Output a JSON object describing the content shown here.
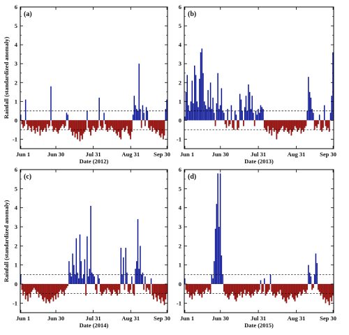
{
  "colors": {
    "positive": "#0a1496",
    "negative": "#a8120f",
    "frame": "#000000",
    "threshold": "#000000"
  },
  "chart_data": [
    {
      "type": "bar",
      "panel_label": "(a)",
      "xlabel": "Date (2012)",
      "ylabel": "Rainfall (standardized anomaly)",
      "xticks": [
        "Jun 1",
        "Jun 30",
        "Jul 31",
        "Aug 31",
        "Sep 30"
      ],
      "yticks": [
        "-1",
        "0",
        "1",
        "2",
        "3",
        "4",
        "5",
        "6"
      ],
      "ylim": [
        -1.5,
        6
      ],
      "thresholds": [
        0.5,
        -0.5
      ],
      "days": 122,
      "values": [
        0.3,
        -0.2,
        -0.4,
        -0.3,
        1.1,
        -0.2,
        -0.5,
        -0.3,
        -0.4,
        -0.6,
        -0.3,
        -0.5,
        -0.7,
        -0.4,
        -0.6,
        -0.3,
        -0.8,
        -0.5,
        -0.6,
        -0.5,
        -0.4,
        -0.6,
        -0.2,
        -0.4,
        -0.3,
        1.8,
        -0.3,
        -0.6,
        -0.5,
        -0.4,
        -0.6,
        -0.7,
        -0.5,
        -0.4,
        -0.3,
        -0.2,
        -0.4,
        -0.3,
        0.4,
        0.3,
        -0.5,
        -0.4,
        -0.6,
        -0.8,
        -0.6,
        -0.9,
        -0.7,
        -1.0,
        -0.6,
        -1.1,
        -0.8,
        -1.0,
        -0.7,
        -0.6,
        -0.5,
        0.5,
        -0.4,
        -0.6,
        -0.8,
        -0.5,
        -0.3,
        -0.4,
        -0.6,
        -0.5,
        -0.4,
        1.2,
        -0.3,
        -0.5,
        -0.4,
        0.4,
        -0.2,
        -0.5,
        -0.6,
        -0.4,
        -0.5,
        -0.3,
        -0.4,
        -0.6,
        -0.5,
        -0.7,
        -0.8,
        -0.6,
        -0.9,
        -1.0,
        -0.5,
        -0.4,
        -0.6,
        -0.5,
        -0.3,
        -0.7,
        -0.8,
        -1.0,
        -0.6,
        0.3,
        1.3,
        0.8,
        0.6,
        0.5,
        3.0,
        0.6,
        -0.4,
        0.8,
        0.4,
        -0.3,
        0.7,
        0.5,
        -0.4,
        -0.5,
        -0.3,
        -0.6,
        -0.4,
        -0.5,
        -0.7,
        -0.6,
        -0.5,
        -0.8,
        -0.9,
        -0.7,
        -1.0,
        -0.8,
        0.6,
        1.1
      ]
    },
    {
      "type": "bar",
      "panel_label": "(b)",
      "xlabel": "Date (2013)",
      "ylabel": "",
      "xticks": [
        "Jun 1",
        "Jun 30",
        "Jul 31",
        "Aug 31",
        "Sep 30"
      ],
      "yticks": [
        "-1",
        "0",
        "1",
        "2",
        "3",
        "4",
        "5",
        "6"
      ],
      "ylim": [
        -1.5,
        6
      ],
      "thresholds": [
        0.5,
        -0.5
      ],
      "days": 122,
      "values": [
        0.2,
        1.5,
        2.4,
        0.8,
        0.5,
        1.0,
        2.1,
        0.9,
        2.9,
        2.4,
        1.0,
        0.7,
        2.2,
        3.6,
        3.8,
        2.5,
        1.0,
        0.8,
        0.6,
        1.6,
        0.7,
        2.0,
        0.6,
        1.2,
        0.4,
        -0.3,
        0.9,
        2.5,
        0.6,
        0.8,
        1.7,
        0.5,
        0.4,
        -0.2,
        -0.4,
        0.6,
        -0.3,
        -0.2,
        0.8,
        -0.4,
        -0.5,
        0.5,
        0.3,
        -0.5,
        -0.4,
        1.4,
        1.1,
        0.5,
        -0.3,
        0.7,
        1.3,
        0.5,
        1.9,
        1.5,
        0.6,
        1.3,
        0.4,
        -0.3,
        0.5,
        0.3,
        0.6,
        0.4,
        0.8,
        0.7,
        0.6,
        -0.4,
        -0.5,
        -0.6,
        -0.3,
        -0.7,
        -0.5,
        -0.8,
        -0.4,
        -0.6,
        -0.5,
        -1.0,
        -0.7,
        -0.6,
        -0.5,
        -0.4,
        -0.3,
        -0.6,
        -0.5,
        -0.4,
        -0.6,
        -0.7,
        -0.5,
        -0.8,
        -0.6,
        -0.5,
        -0.3,
        -0.4,
        -0.6,
        -0.5,
        -0.4,
        -0.7,
        -0.5,
        -0.6,
        -0.4,
        -0.3,
        0.5,
        2.3,
        1.5,
        1.2,
        0.6,
        0.4,
        -0.5,
        -0.3,
        -0.4,
        -0.2,
        0.3,
        -0.5,
        -0.6,
        -0.4,
        0.8,
        -0.3,
        -0.5,
        -0.4,
        -0.6,
        0.4,
        1.3,
        3.6
      ]
    },
    {
      "type": "bar",
      "panel_label": "(c)",
      "xlabel": "Date (2014)",
      "ylabel": "Rainfall (standardized anomaly)",
      "xticks": [
        "Jun 1",
        "Jun 30",
        "Jul 31",
        "Aug 31",
        "Sep 30"
      ],
      "yticks": [
        "-1",
        "0",
        "1",
        "2",
        "3",
        "4",
        "5",
        "6"
      ],
      "ylim": [
        -1.5,
        6
      ],
      "thresholds": [
        0.5,
        -0.5
      ],
      "days": 122,
      "values": [
        0.5,
        -0.3,
        -0.6,
        -0.4,
        -0.8,
        -0.6,
        -0.9,
        -0.5,
        -0.7,
        -0.4,
        -0.3,
        -0.2,
        -0.3,
        -0.5,
        -0.4,
        -0.7,
        -0.5,
        -0.6,
        -0.8,
        -0.9,
        -0.7,
        -1.0,
        -0.8,
        -0.9,
        -1.0,
        -0.8,
        -0.7,
        -0.9,
        -0.6,
        -0.8,
        -0.5,
        -0.7,
        -0.4,
        -0.3,
        -0.5,
        -0.4,
        -0.6,
        -0.3,
        -0.2,
        -0.1,
        1.2,
        0.6,
        0.4,
        1.6,
        1.0,
        0.5,
        2.4,
        0.6,
        0.3,
        2.6,
        1.2,
        0.3,
        0.5,
        1.3,
        -0.6,
        2.5,
        0.4,
        0.8,
        4.1,
        0.6,
        0.5,
        0.4,
        -0.3,
        -0.5,
        0.5,
        0.3,
        -0.4,
        -0.6,
        -0.5,
        -0.4,
        -0.3,
        -0.5,
        -0.2,
        -0.3,
        -0.4,
        -0.6,
        -0.5,
        -0.3,
        -0.4,
        -0.5,
        -0.6,
        -0.3,
        -0.5,
        1.9,
        0.5,
        1.4,
        -0.3,
        1.9,
        0.6,
        -0.4,
        -0.5,
        -0.3,
        0.4,
        -0.5,
        -0.6,
        0.8,
        1.2,
        3.4,
        0.8,
        2.0,
        0.5,
        0.6,
        -0.3,
        0.4,
        -0.4,
        -0.2,
        -0.3,
        -0.5,
        0.3,
        -0.6,
        -0.8,
        -0.5,
        -0.7,
        -0.9,
        -0.6,
        -0.8,
        -1.0,
        -0.7,
        -0.9,
        -1.1,
        -0.8,
        -0.5
      ]
    },
    {
      "type": "bar",
      "panel_label": "(d)",
      "xlabel": "Date (2015)",
      "ylabel": "",
      "xticks": [
        "Jun 1",
        "Jun 30",
        "Jul 31",
        "Aug 31",
        "Sep 30"
      ],
      "yticks": [
        "-1",
        "0",
        "1",
        "2",
        "3",
        "4",
        "5",
        "6"
      ],
      "ylim": [
        -1.5,
        6
      ],
      "thresholds": [
        0.5,
        -0.5
      ],
      "days": 122,
      "values": [
        0.3,
        -0.3,
        -0.5,
        -0.4,
        -0.7,
        -0.6,
        -0.8,
        -0.5,
        -0.6,
        -0.4,
        -0.3,
        -0.5,
        -0.6,
        -0.5,
        -0.7,
        -0.4,
        -0.5,
        -0.3,
        -0.2,
        -0.4,
        -0.3,
        -0.5,
        0.5,
        0.3,
        1.2,
        2.9,
        4.2,
        5.8,
        3.0,
        5.8,
        1.5,
        0.5,
        -0.4,
        -0.6,
        -0.5,
        -0.7,
        -0.8,
        -0.6,
        -0.5,
        -0.4,
        -0.6,
        -0.8,
        -0.9,
        -0.7,
        -0.5,
        -0.6,
        -0.4,
        -0.7,
        -0.5,
        -0.3,
        -0.6,
        -0.5,
        -0.4,
        -0.6,
        -0.7,
        -0.5,
        -0.6,
        -0.4,
        -0.3,
        -0.5,
        -0.4,
        -0.3,
        0.2,
        -0.5,
        -0.4,
        0.3,
        -0.6,
        -0.5,
        -0.4,
        -0.3,
        0.5,
        -0.4,
        -0.6,
        -0.5,
        -0.7,
        -0.6,
        -0.4,
        -0.5,
        -0.3,
        -0.6,
        -0.8,
        -0.7,
        -0.9,
        -1.0,
        -0.7,
        -0.8,
        -0.6,
        -0.5,
        -0.7,
        -0.8,
        -0.9,
        -0.6,
        -0.7,
        -0.5,
        -0.4,
        -0.6,
        -0.5,
        -0.3,
        -0.4,
        -0.5,
        -0.3,
        1.0,
        0.6,
        0.4,
        -0.3,
        -0.2,
        0.5,
        1.6,
        1.1,
        -0.3,
        -0.4,
        -0.6,
        -0.5,
        -0.8,
        -0.7,
        -1.0,
        -0.8,
        -0.9,
        -1.1,
        -0.7,
        -0.9,
        -0.6
      ]
    }
  ]
}
